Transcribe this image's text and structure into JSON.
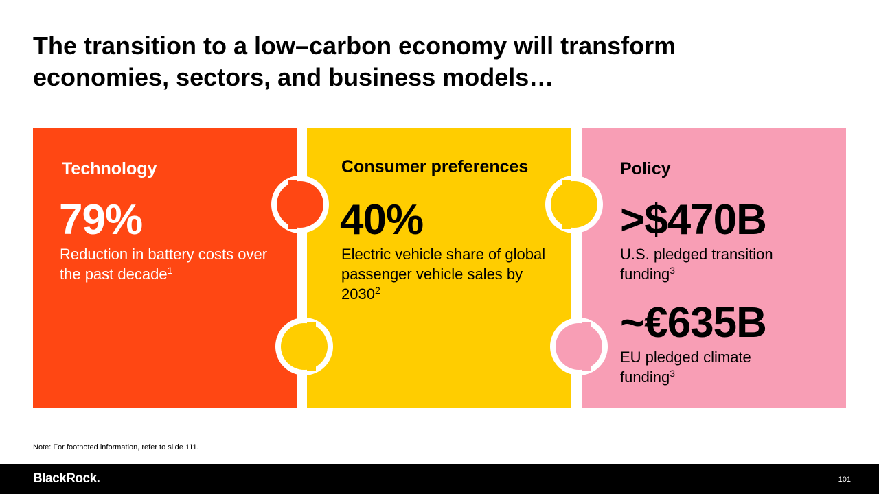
{
  "header": {
    "title_line1": "The transition to a low–carbon economy will transform",
    "title_line2": "economies, sectors, and business models…"
  },
  "panels": [
    {
      "heading": "Technology",
      "stats": [
        {
          "value": "79%",
          "description": "Reduction in battery costs over the past decade",
          "footnote": "1"
        }
      ]
    },
    {
      "heading": "Consumer preferences",
      "stats": [
        {
          "value": "40%",
          "description": "Electric vehicle share of global passenger vehicle sales by 2030",
          "footnote": "2"
        }
      ]
    },
    {
      "heading": "Policy",
      "stats": [
        {
          "value": ">$470B",
          "description": "U.S. pledged transition funding",
          "footnote": "3"
        },
        {
          "value": "~€635B",
          "description": "EU pledged climate funding",
          "footnote": "3"
        }
      ]
    }
  ],
  "note": "Note: For footnoted information, refer to slide 111.",
  "footer": {
    "brand": "BlackRock.",
    "page": "101"
  }
}
